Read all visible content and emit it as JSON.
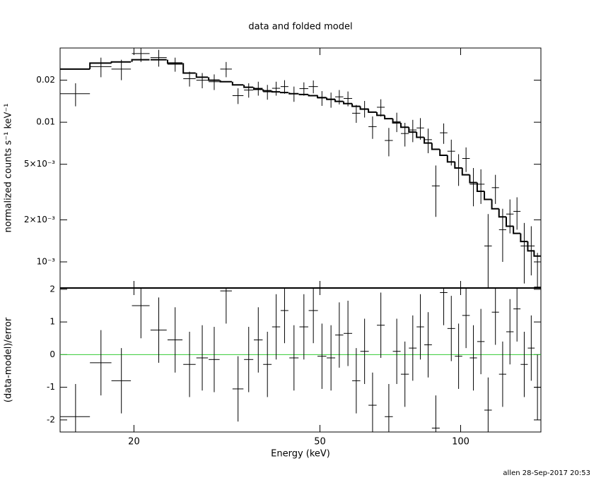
{
  "chart_data": [
    {
      "type": "errorbar",
      "title": "data and folded model",
      "y_label": "normalized counts s⁻¹ keV⁻¹",
      "xlog": true,
      "ylog": true,
      "xlim": [
        13.9,
        148.5
      ],
      "ylim": [
        0.00065,
        0.034
      ],
      "xticks": [
        20,
        50,
        100
      ],
      "show_xtick_labels": false,
      "yticks": [
        0.02,
        0.01,
        {
          "value": 0.005,
          "label": "5×10⁻³"
        },
        {
          "value": 0.002,
          "label": "2×10⁻³"
        },
        {
          "value": 0.001,
          "label": "10⁻³"
        }
      ],
      "color": "#000000",
      "x": [
        15.0,
        17.0,
        18.8,
        20.7,
        22.6,
        24.5,
        26.3,
        28.0,
        29.7,
        31.5,
        33.4,
        35.2,
        36.9,
        38.6,
        40.3,
        42.0,
        44.0,
        46.2,
        48.4,
        50.5,
        52.8,
        55.0,
        57.4,
        59.8,
        62.3,
        64.8,
        67.5,
        70.2,
        73.0,
        76.0,
        79.0,
        82.0,
        85.2,
        88.5,
        92.0,
        95.5,
        99.0,
        102.7,
        106.5,
        110.5,
        114.5,
        118.7,
        123.0,
        127.5,
        132.0,
        136.8,
        141.6,
        146.0
      ],
      "x_errors": [
        1.1,
        0.9,
        0.9,
        0.9,
        0.9,
        0.9,
        0.8,
        0.8,
        0.8,
        0.9,
        0.9,
        0.8,
        0.8,
        0.8,
        0.8,
        0.8,
        1.0,
        1.0,
        1.1,
        1.1,
        1.1,
        1.1,
        1.2,
        1.2,
        1.3,
        1.3,
        1.3,
        1.4,
        1.4,
        1.5,
        1.5,
        1.5,
        1.6,
        1.7,
        1.7,
        1.8,
        1.8,
        1.9,
        1.9,
        2.0,
        2.1,
        2.1,
        2.2,
        2.3,
        2.3,
        2.4,
        2.4,
        2.4
      ],
      "values": [
        0.016,
        0.025,
        0.024,
        0.031,
        0.029,
        0.026,
        0.0205,
        0.02,
        0.0195,
        0.024,
        0.0155,
        0.017,
        0.0175,
        0.0165,
        0.0175,
        0.018,
        0.016,
        0.0174,
        0.018,
        0.0149,
        0.0145,
        0.0152,
        0.0148,
        0.0116,
        0.0125,
        0.0093,
        0.0128,
        0.0074,
        0.0101,
        0.0083,
        0.0088,
        0.0091,
        0.0075,
        0.0035,
        0.0084,
        0.0062,
        0.0047,
        0.0055,
        0.0036,
        0.0036,
        0.0013,
        0.0034,
        0.0017,
        0.0022,
        0.0023,
        0.0013,
        0.0013,
        0.00066
      ],
      "errors": [
        0.003,
        0.004,
        0.004,
        0.004,
        0.004,
        0.003,
        0.0025,
        0.0025,
        0.0025,
        0.003,
        0.002,
        0.002,
        0.002,
        0.002,
        0.002,
        0.002,
        0.002,
        0.0019,
        0.0019,
        0.0018,
        0.0018,
        0.0018,
        0.0018,
        0.0017,
        0.0017,
        0.0017,
        0.0018,
        0.0017,
        0.0016,
        0.0016,
        0.0016,
        0.0016,
        0.0015,
        0.0014,
        0.0014,
        0.0013,
        0.0012,
        0.0011,
        0.0011,
        0.001,
        0.0009,
        0.0008,
        0.0007,
        0.0006,
        0.0006,
        0.0006,
        0.0005,
        0.0005
      ],
      "model": [
        0.024,
        0.0265,
        0.027,
        0.028,
        0.028,
        0.0265,
        0.0225,
        0.021,
        0.02,
        0.0195,
        0.0185,
        0.0178,
        0.0172,
        0.0168,
        0.0165,
        0.0163,
        0.016,
        0.0158,
        0.0155,
        0.015,
        0.0146,
        0.0141,
        0.0136,
        0.013,
        0.0124,
        0.0118,
        0.0112,
        0.0106,
        0.0099,
        0.0092,
        0.0085,
        0.0078,
        0.0071,
        0.0064,
        0.0058,
        0.0052,
        0.0047,
        0.0042,
        0.0037,
        0.0032,
        0.0028,
        0.0024,
        0.0021,
        0.0018,
        0.0016,
        0.0014,
        0.0012,
        0.0011
      ]
    },
    {
      "type": "errorbar",
      "x_label": "Energy (keV)",
      "y_label": "(data-model)/error",
      "xlog": true,
      "ylog": false,
      "xlim": [
        13.9,
        148.5
      ],
      "ylim": [
        -2.37,
        2.04
      ],
      "xticks": [
        20,
        50,
        100
      ],
      "show_xtick_labels": true,
      "yticks": [
        -2,
        -1,
        0,
        1,
        2
      ],
      "color": "#000000",
      "ref_line": 0,
      "ref_line_color": "#33cc33",
      "x": [
        15.0,
        17.0,
        18.8,
        20.7,
        22.6,
        24.5,
        26.3,
        28.0,
        29.7,
        31.5,
        33.4,
        35.2,
        36.9,
        38.6,
        40.3,
        42.0,
        44.0,
        46.2,
        48.4,
        50.5,
        52.8,
        55.0,
        57.4,
        59.8,
        62.3,
        64.8,
        67.5,
        70.2,
        73.0,
        76.0,
        79.0,
        82.0,
        85.2,
        88.5,
        92.0,
        95.5,
        99.0,
        102.7,
        106.5,
        110.5,
        114.5,
        118.7,
        123.0,
        127.5,
        132.0,
        136.8,
        141.6,
        146.0
      ],
      "x_errors": [
        1.1,
        0.9,
        0.9,
        0.9,
        0.9,
        0.9,
        0.8,
        0.8,
        0.8,
        0.9,
        0.9,
        0.8,
        0.8,
        0.8,
        0.8,
        0.8,
        1.0,
        1.0,
        1.1,
        1.1,
        1.1,
        1.1,
        1.2,
        1.2,
        1.3,
        1.3,
        1.3,
        1.4,
        1.4,
        1.5,
        1.5,
        1.5,
        1.6,
        1.7,
        1.7,
        1.8,
        1.8,
        1.9,
        1.9,
        2.0,
        2.1,
        2.1,
        2.2,
        2.3,
        2.3,
        2.4,
        2.4,
        2.4
      ],
      "values": [
        -1.9,
        -0.25,
        -0.8,
        1.5,
        0.75,
        0.45,
        -0.3,
        -0.1,
        -0.15,
        1.95,
        -1.05,
        -0.15,
        0.45,
        -0.3,
        0.85,
        1.35,
        -0.1,
        0.85,
        1.35,
        -0.05,
        -0.1,
        0.6,
        0.65,
        -0.8,
        0.1,
        -1.55,
        0.9,
        -1.9,
        0.1,
        -0.6,
        0.2,
        0.85,
        0.3,
        -2.25,
        1.9,
        0.8,
        -0.05,
        1.2,
        -0.1,
        0.4,
        -1.7,
        1.3,
        -0.6,
        0.7,
        1.4,
        -0.3,
        0.2,
        -1.0
      ],
      "errors": [
        1,
        1,
        1,
        1,
        1,
        1,
        1,
        1,
        1,
        1,
        1,
        1,
        1,
        1,
        1,
        1,
        1,
        1,
        1,
        1,
        1,
        1,
        1,
        1,
        1,
        1,
        1,
        1,
        1,
        1,
        1,
        1,
        1,
        1,
        1,
        1,
        1,
        1,
        1,
        1,
        1,
        1,
        1,
        1,
        1,
        1,
        1,
        1
      ]
    }
  ],
  "footer": "allen 28-Sep-2017 20:53"
}
